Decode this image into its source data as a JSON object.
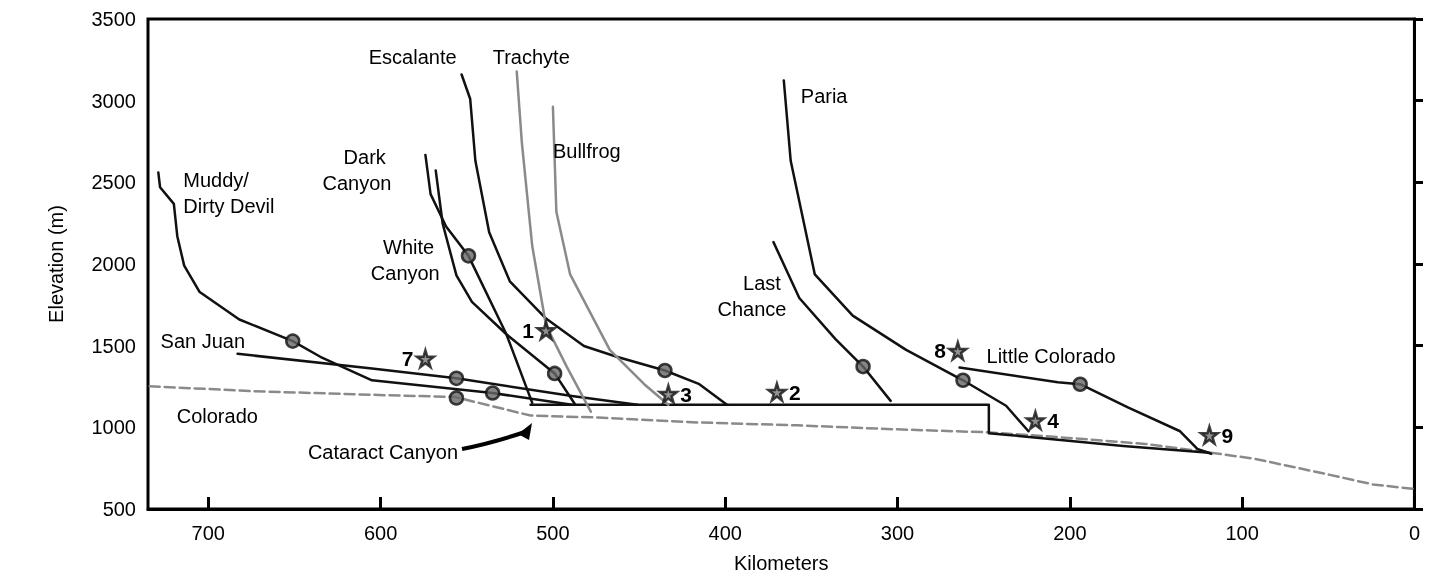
{
  "chart_data": {
    "type": "line",
    "xlabel": "Kilometers",
    "ylabel": "Elevation (m)",
    "xlim": [
      735,
      0
    ],
    "xticks": [
      700,
      600,
      500,
      400,
      300,
      200,
      100,
      0
    ],
    "ylim": [
      500,
      3500
    ],
    "yticks": [
      500,
      1000,
      1500,
      2000,
      2500,
      3000,
      3500
    ],
    "grid": false,
    "marker": "none",
    "annotations": [
      "Cataract Canyon",
      {
        "text": "1",
        "x": 504,
        "y": 1594
      },
      {
        "text": "2",
        "x": 370,
        "y": 1216
      },
      {
        "text": "3",
        "x": 433,
        "y": 1204
      },
      {
        "text": "4",
        "x": 220,
        "y": 1042
      },
      {
        "text": "7",
        "x": 574,
        "y": 1420
      },
      {
        "text": "8",
        "x": 265,
        "y": 1468
      },
      {
        "text": "9",
        "x": 119,
        "y": 952
      }
    ],
    "series": [
      {
        "name": "Colorado",
        "color": "#8a8a8a",
        "line_style": "dashed",
        "x": [
          734,
          676,
          601,
          557,
          513,
          474,
          416,
          358,
          301,
          249,
          214,
          156,
          122,
          93,
          52,
          24,
          0
        ],
        "values": [
          1252,
          1222,
          1198,
          1186,
          1072,
          1060,
          1030,
          1012,
          988,
          970,
          946,
          898,
          850,
          808,
          716,
          650,
          622
        ]
      },
      {
        "color": "#111111",
        "x": [
          513,
          247,
          247,
          234,
          169,
          119
        ],
        "values": [
          1138,
          1138,
          964,
          952,
          886,
          844
        ]
      },
      {
        "name": "San Juan",
        "color": "#111111",
        "x": [
          683,
          605,
          556,
          489,
          451
        ],
        "values": [
          1450,
          1360,
          1300,
          1192,
          1138
        ]
      },
      {
        "name": "Muddy/ Dirty Devil",
        "color": "#111111",
        "x": [
          729,
          728,
          720,
          718,
          714,
          705,
          682,
          651,
          635,
          605,
          535,
          489
        ],
        "values": [
          2560,
          2470,
          2368,
          2170,
          1990,
          1828,
          1660,
          1528,
          1432,
          1288,
          1210,
          1138
        ]
      },
      {
        "name": "Dark Canyon",
        "color": "#111111",
        "x": [
          574,
          571,
          562,
          549,
          527,
          512
        ],
        "values": [
          2668,
          2428,
          2230,
          2050,
          1570,
          1150
        ]
      },
      {
        "name": "White Canyon",
        "color": "#111111",
        "x": [
          568,
          564,
          556,
          547,
          527,
          499,
          487
        ],
        "values": [
          2572,
          2248,
          1930,
          1768,
          1570,
          1330,
          1138
        ]
      },
      {
        "name": "Escalante",
        "color": "#111111",
        "x": [
          553,
          548,
          545,
          537,
          525,
          504,
          482,
          463,
          435,
          415,
          399
        ],
        "values": [
          3160,
          3010,
          2632,
          2194,
          1894,
          1666,
          1498,
          1432,
          1348,
          1264,
          1138
        ]
      },
      {
        "name": "Trachyte",
        "color": "#8a8a8a",
        "x": [
          521,
          518,
          512,
          504,
          492,
          478
        ],
        "values": [
          3178,
          2740,
          2110,
          1624,
          1372,
          1096
        ]
      },
      {
        "name": "Bullfrog",
        "color": "#8a8a8a",
        "x": [
          500,
          498,
          490,
          467,
          447,
          433
        ],
        "values": [
          2962,
          2320,
          1936,
          1474,
          1264,
          1138
        ]
      },
      {
        "name": "Last Chance",
        "color": "#111111",
        "x": [
          372,
          357,
          336,
          320,
          304
        ],
        "values": [
          2134,
          1792,
          1540,
          1372,
          1162
        ]
      },
      {
        "name": "Paria",
        "color": "#111111",
        "x": [
          366,
          362,
          348,
          326,
          295,
          262,
          237,
          224
        ],
        "values": [
          3124,
          2632,
          1936,
          1684,
          1474,
          1288,
          1132,
          976
        ]
      },
      {
        "name": "Little Colorado",
        "color": "#111111",
        "x": [
          264,
          207,
          194,
          166,
          136,
          126,
          118
        ],
        "values": [
          1366,
          1276,
          1264,
          1120,
          976,
          868,
          838
        ]
      },
      {
        "type": "scatter",
        "marker": "circle",
        "color": "#666666",
        "x": [
          651,
          556,
          556,
          535,
          549,
          499,
          435,
          320,
          262,
          194
        ],
        "values": [
          1528,
          1300,
          1180,
          1210,
          2050,
          1330,
          1348,
          1372,
          1288,
          1264
        ]
      },
      {
        "type": "scatter",
        "marker": "star",
        "color": "#777777",
        "x": [
          504,
          370,
          433,
          220,
          574,
          265,
          119
        ],
        "values": [
          1594,
          1216,
          1204,
          1042,
          1420,
          1468,
          952
        ]
      }
    ]
  }
}
